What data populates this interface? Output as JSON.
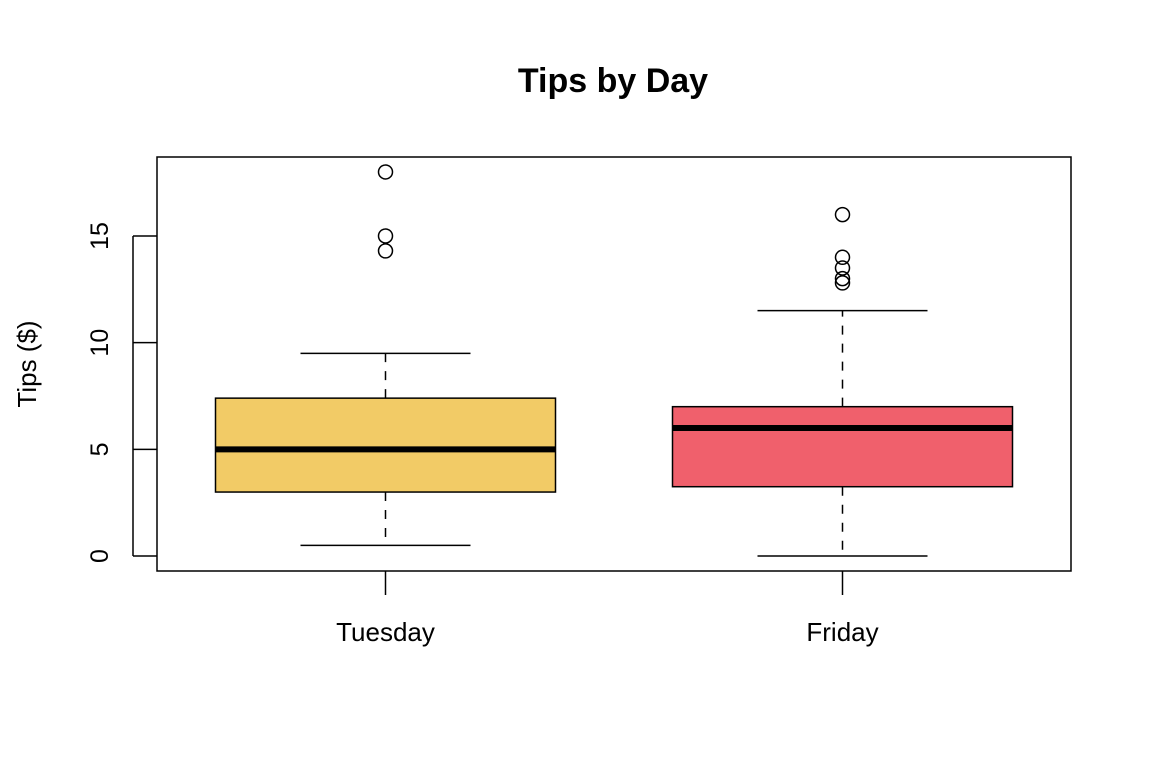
{
  "chart_data": {
    "type": "boxplot",
    "title": "Tips by Day",
    "xlabel": "",
    "ylabel": "Tips ($)",
    "ylim": [
      -0.7,
      18.7
    ],
    "y_ticks": [
      0,
      5,
      10,
      15
    ],
    "grid": false,
    "legend": "none",
    "categories": [
      "Tuesday",
      "Friday"
    ],
    "boxes": [
      {
        "category": "Tuesday",
        "color": "#F2CB66",
        "whisker_low": 0.5,
        "q1": 3.0,
        "median": 5.0,
        "q3": 7.4,
        "whisker_high": 9.5,
        "outliers": [
          14.3,
          15.0,
          18.0
        ]
      },
      {
        "category": "Friday",
        "color": "#F0606C",
        "whisker_low": 0.0,
        "q1": 3.25,
        "median": 6.0,
        "q3": 7.0,
        "whisker_high": 11.5,
        "outliers": [
          12.8,
          13.0,
          13.5,
          14.0,
          16.0
        ]
      }
    ]
  }
}
